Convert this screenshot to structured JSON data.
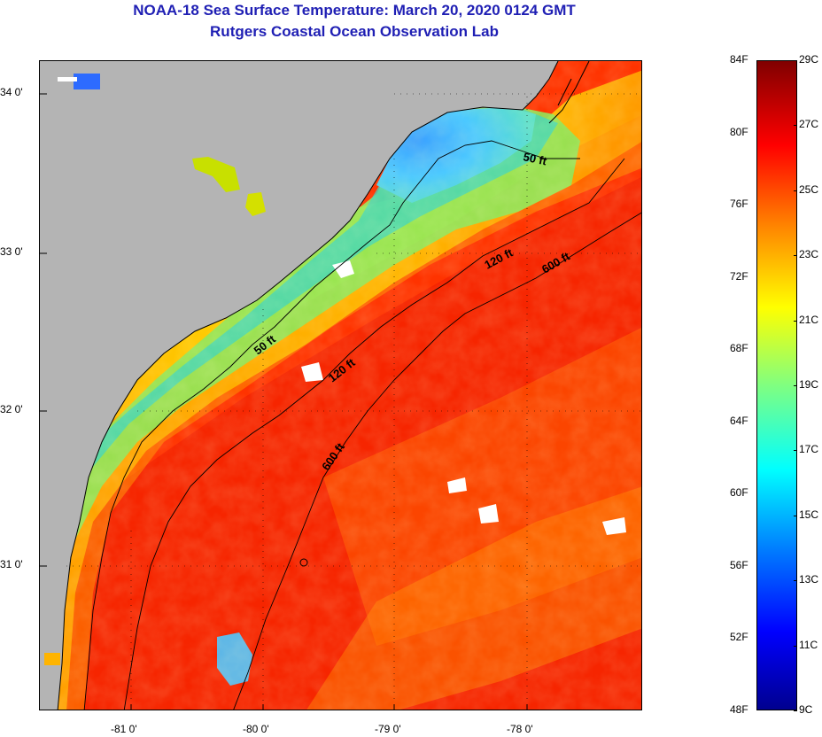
{
  "header": {
    "title": "NOAA-18 Sea Surface Temperature:  March 20, 2020 0124 GMT",
    "subtitle": "Rutgers Coastal Ocean Observation Lab"
  },
  "map": {
    "lat_labels": [
      "34 0'",
      "33 0'",
      "32 0'",
      "31 0'"
    ],
    "lon_labels": [
      "-81 0'",
      "-80 0'",
      "-79 0'",
      "-78 0'"
    ],
    "contours": [
      {
        "name": "50 ft",
        "label": "50 ft"
      },
      {
        "name": "120 ft",
        "label": "120 ft"
      },
      {
        "name": "600 ft",
        "label": "600 ft"
      }
    ],
    "land_color": "#b4b4b4",
    "missing_data_color": "#ffffff"
  },
  "colorbar": {
    "fahrenheit_labels": [
      "84F",
      "80F",
      "76F",
      "72F",
      "68F",
      "64F",
      "60F",
      "56F",
      "52F",
      "48F"
    ],
    "celsius_labels": [
      "29C",
      "27C",
      "25C",
      "23C",
      "21C",
      "19C",
      "17C",
      "15C",
      "13C",
      "11C",
      "9C"
    ],
    "range_celsius": [
      9,
      29
    ],
    "range_fahrenheit": [
      48,
      84
    ],
    "colormap": "jet"
  }
}
